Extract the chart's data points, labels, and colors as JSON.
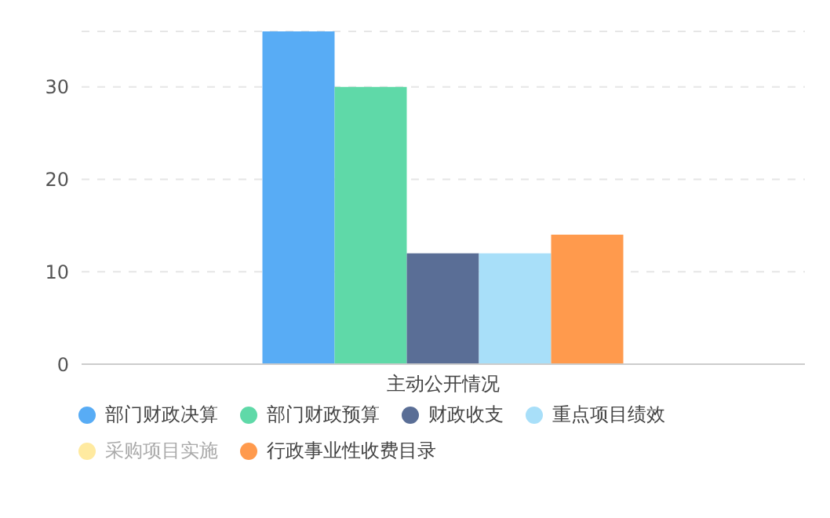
{
  "chart_data": {
    "type": "bar",
    "categories": [
      "主动公开情况"
    ],
    "series": [
      {
        "name": "部门财政决算",
        "color": "#58acf5",
        "values": [
          36
        ]
      },
      {
        "name": "部门财政预算",
        "color": "#5fd9a8",
        "values": [
          30
        ]
      },
      {
        "name": "财政收支",
        "color": "#5a6e96",
        "values": [
          12
        ]
      },
      {
        "name": "重点项目绩效",
        "color": "#a8dff9",
        "values": [
          12
        ]
      },
      {
        "name": "采购项目实施",
        "color": "#ffeaa0",
        "values": [
          null
        ]
      },
      {
        "name": "行政事业性收费目录",
        "color": "#ff9a4d",
        "values": [
          14
        ]
      }
    ],
    "ylim": [
      0,
      36
    ],
    "yticks": [
      0,
      10,
      20,
      30
    ],
    "grid": "y",
    "legend": "bottom"
  }
}
